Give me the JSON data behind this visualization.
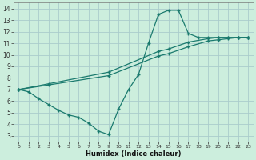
{
  "xlabel": "Humidex (Indice chaleur)",
  "bg_color": "#cceedd",
  "grid_color": "#aacccc",
  "line_color": "#1a7a6e",
  "xlim": [
    -0.5,
    23.5
  ],
  "ylim": [
    2.5,
    14.5
  ],
  "xticks": [
    0,
    1,
    2,
    3,
    4,
    5,
    6,
    7,
    8,
    9,
    10,
    11,
    12,
    13,
    14,
    15,
    16,
    17,
    18,
    19,
    20,
    21,
    22,
    23
  ],
  "yticks": [
    3,
    4,
    5,
    6,
    7,
    8,
    9,
    10,
    11,
    12,
    13,
    14
  ],
  "line1_x": [
    0,
    1,
    2,
    3,
    4,
    5,
    6,
    7,
    8,
    9,
    10,
    11,
    12,
    13,
    14,
    15,
    16,
    17,
    18,
    19,
    20,
    21,
    22,
    23
  ],
  "line1_y": [
    7.0,
    6.8,
    6.2,
    5.7,
    5.2,
    4.8,
    4.6,
    4.1,
    3.4,
    3.1,
    5.3,
    7.0,
    8.3,
    11.0,
    13.5,
    13.85,
    13.85,
    11.85,
    11.5,
    11.5,
    11.5,
    11.5,
    11.5,
    11.5
  ],
  "line2_x": [
    0,
    3,
    9,
    14,
    15,
    17,
    19,
    20,
    21,
    22,
    23
  ],
  "line2_y": [
    7.0,
    7.4,
    8.2,
    9.9,
    10.1,
    10.7,
    11.2,
    11.3,
    11.4,
    11.5,
    11.5
  ],
  "line3_x": [
    0,
    3,
    9,
    14,
    15,
    17,
    19,
    20,
    21,
    22,
    23
  ],
  "line3_y": [
    7.0,
    7.5,
    8.5,
    10.3,
    10.5,
    11.1,
    11.4,
    11.5,
    11.5,
    11.5,
    11.5
  ]
}
